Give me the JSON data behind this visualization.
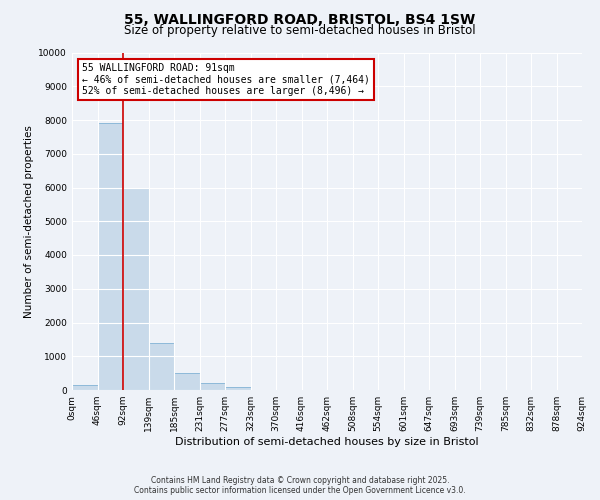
{
  "title": "55, WALLINGFORD ROAD, BRISTOL, BS4 1SW",
  "subtitle": "Size of property relative to semi-detached houses in Bristol",
  "bar_heights": [
    150,
    7900,
    6000,
    1400,
    500,
    200,
    100,
    0,
    0,
    0,
    0,
    0,
    0,
    0,
    0,
    0,
    0,
    0,
    0,
    0
  ],
  "bin_labels": [
    "0sqm",
    "46sqm",
    "92sqm",
    "139sqm",
    "185sqm",
    "231sqm",
    "277sqm",
    "323sqm",
    "370sqm",
    "416sqm",
    "462sqm",
    "508sqm",
    "554sqm",
    "601sqm",
    "647sqm",
    "693sqm",
    "739sqm",
    "785sqm",
    "832sqm",
    "878sqm",
    "924sqm"
  ],
  "bar_color": "#c9daea",
  "bar_edge_color": "#6fa8d0",
  "vline_color": "#cc0000",
  "annotation_line1": "55 WALLINGFORD ROAD: 91sqm",
  "annotation_line2": "← 46% of semi-detached houses are smaller (7,464)",
  "annotation_line3": "52% of semi-detached houses are larger (8,496) →",
  "annotation_box_color": "#cc0000",
  "ylabel": "Number of semi-detached properties",
  "xlabel": "Distribution of semi-detached houses by size in Bristol",
  "ylim": [
    0,
    10000
  ],
  "yticks": [
    0,
    1000,
    2000,
    3000,
    4000,
    5000,
    6000,
    7000,
    8000,
    9000,
    10000
  ],
  "footer_line1": "Contains HM Land Registry data © Crown copyright and database right 2025.",
  "footer_line2": "Contains public sector information licensed under the Open Government Licence v3.0.",
  "bg_color": "#eef2f8",
  "grid_color": "#ffffff",
  "title_fontsize": 10,
  "subtitle_fontsize": 8.5,
  "tick_fontsize": 6.5,
  "n_bars": 20,
  "vline_bar_index": 2
}
